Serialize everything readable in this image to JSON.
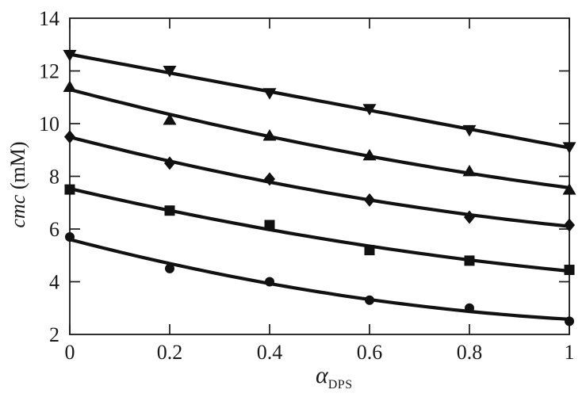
{
  "chart_data": {
    "type": "line",
    "title": "",
    "x": [
      0,
      0.2,
      0.4,
      0.6,
      0.8,
      1
    ],
    "series": [
      {
        "name": "triangle-down-series",
        "marker": "triangle-down",
        "values": [
          12.6,
          12.0,
          11.15,
          10.55,
          9.75,
          9.1
        ]
      },
      {
        "name": "triangle-up-series",
        "marker": "triangle-up",
        "values": [
          11.4,
          10.15,
          9.55,
          8.8,
          8.2,
          7.5
        ]
      },
      {
        "name": "diamond-series",
        "marker": "diamond",
        "values": [
          9.5,
          8.5,
          7.9,
          7.1,
          6.45,
          6.15
        ]
      },
      {
        "name": "square-series",
        "marker": "square",
        "values": [
          7.5,
          6.7,
          6.15,
          5.2,
          4.8,
          4.45
        ]
      },
      {
        "name": "circle-series",
        "marker": "circle",
        "values": [
          5.7,
          4.5,
          4.0,
          3.3,
          3.0,
          2.5
        ]
      }
    ],
    "curve_fit": "quadratic",
    "xlabel": "αDPS",
    "xlabel_parts": {
      "symbol": "α",
      "subscript": "DPS"
    },
    "ylabel": "cmc (mM)",
    "ylabel_parts": {
      "italic": "cmc",
      "rest": " (mM)"
    },
    "xlim": [
      0,
      1
    ],
    "ylim": [
      2,
      14
    ],
    "xticks": {
      "values": [
        0,
        0.2,
        0.4,
        0.6,
        0.8,
        1
      ],
      "labels": [
        "0",
        "0.2",
        "0.4",
        "0.6",
        "0.8",
        "1"
      ]
    },
    "yticks": {
      "values": [
        2,
        4,
        6,
        8,
        10,
        12,
        14
      ],
      "labels": [
        "2",
        "4",
        "6",
        "8",
        "10",
        "12",
        "14"
      ]
    },
    "grid": false,
    "legend": false,
    "colors": {
      "line": "#111111",
      "marker": "#111111",
      "text": "#1a1a1a",
      "frame": "#1a1a1a",
      "background": "#ffffff"
    }
  }
}
